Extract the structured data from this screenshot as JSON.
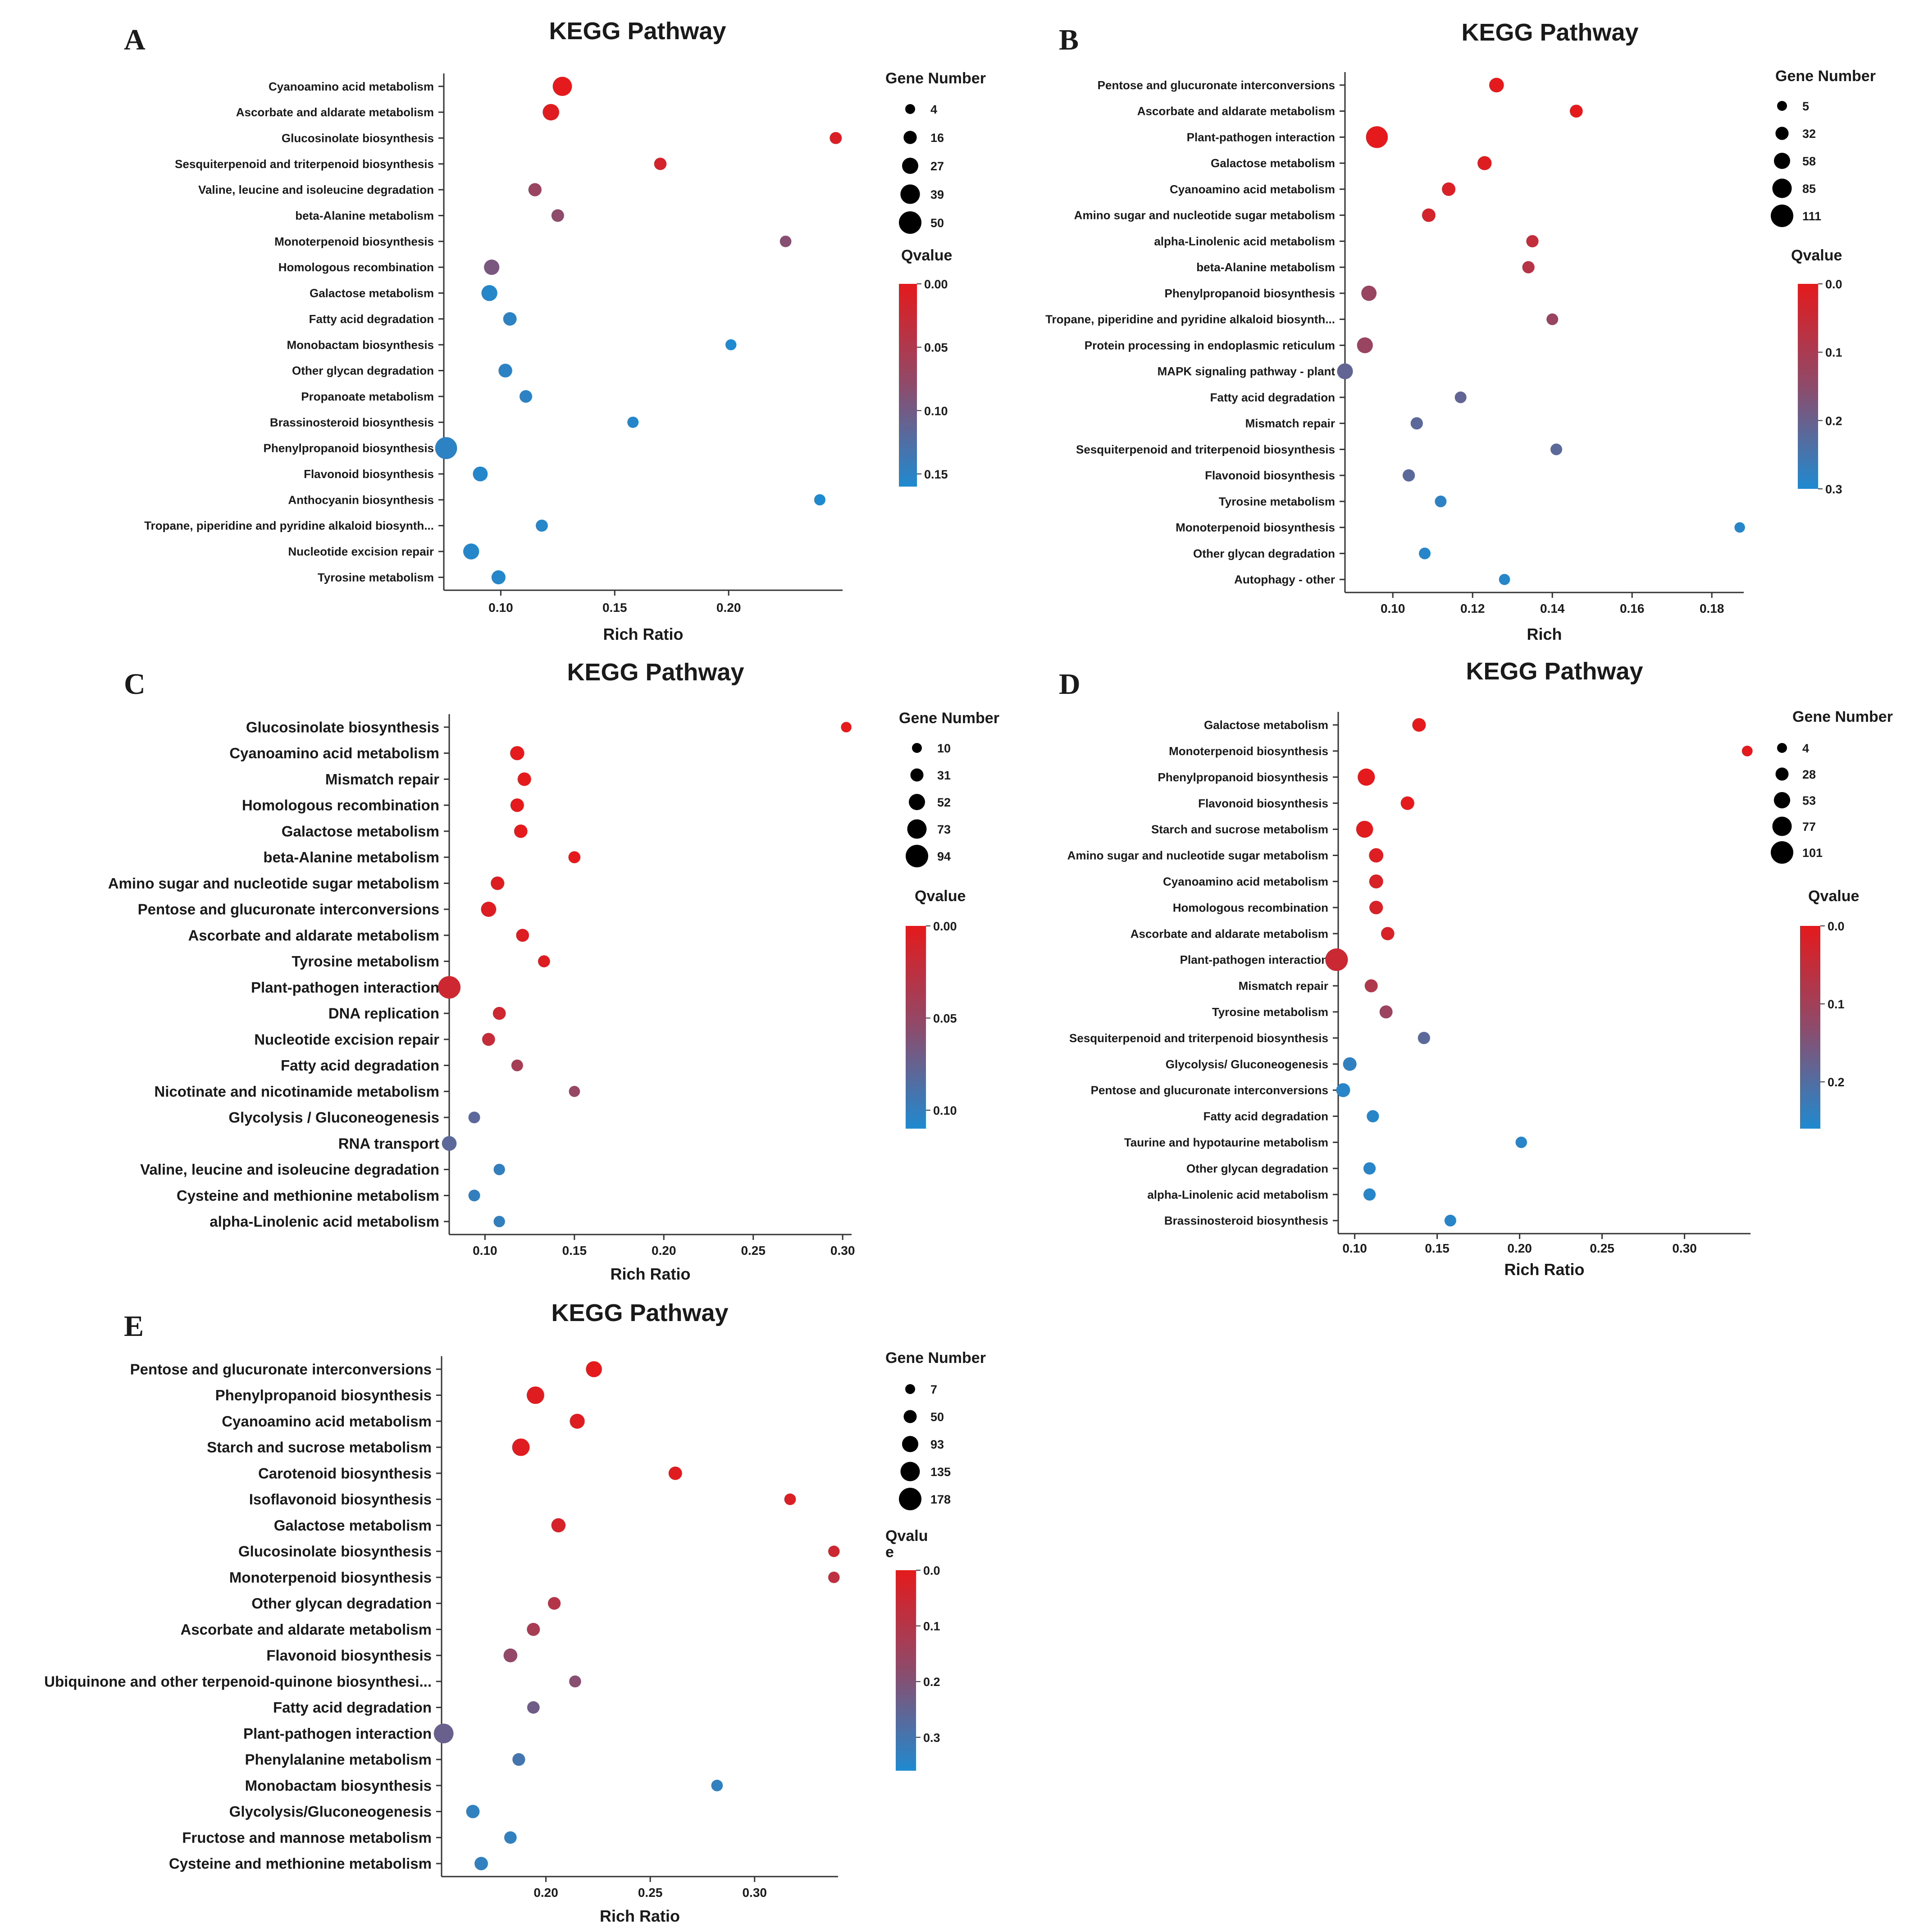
{
  "colors": {
    "qvalue_high": "#e41a1c",
    "qvalue_mid": "#8e4b6b",
    "qvalue_low": "#1f8ad0",
    "axis": "#333333",
    "text": "#1a1a1a"
  },
  "chart_data": [
    {
      "panel": "A",
      "type": "scatter",
      "title": "KEGG Pathway",
      "xlabel": "Rich Ratio",
      "xlim": [
        0.075,
        0.25
      ],
      "xticks": [
        "0.10",
        "0.15",
        "0.20"
      ],
      "size_legend": {
        "title": "Gene Number",
        "values": [
          4,
          16,
          27,
          39,
          50
        ]
      },
      "color_legend": {
        "title": "Qvalue",
        "range": [
          0,
          0.16
        ],
        "ticks": [
          "0.00",
          "0.05",
          "0.10",
          "0.15"
        ]
      },
      "categories": [
        "Cyanoamino acid metabolism",
        "Ascorbate and aldarate metabolism",
        "Glucosinolate biosynthesis",
        "Sesquiterpenoid and triterpenoid biosynthesis",
        "Valine, leucine and isoleucine degradation",
        "beta-Alanine metabolism",
        "Monoterpenoid biosynthesis",
        "Homologous recombination",
        "Galactose metabolism",
        "Fatty acid degradation",
        "Monobactam biosynthesis",
        "Other glycan degradation",
        "Propanoate metabolism",
        "Brassinosteroid biosynthesis",
        "Phenylpropanoid biosynthesis",
        "Flavonoid biosynthesis",
        "Anthocyanin biosynthesis",
        "Tropane, piperidine and pyridine alkaloid biosynth...",
        "Nucleotide excision repair",
        "Tyrosine metabolism"
      ],
      "x": [
        0.127,
        0.122,
        0.247,
        0.17,
        0.115,
        0.125,
        0.225,
        0.096,
        0.095,
        0.104,
        0.201,
        0.102,
        0.111,
        0.158,
        0.076,
        0.091,
        0.24,
        0.118,
        0.087,
        0.099
      ],
      "gene_number": [
        38,
        28,
        12,
        13,
        16,
        14,
        10,
        24,
        26,
        17,
        8,
        18,
        14,
        9,
        48,
        22,
        9,
        12,
        26,
        19
      ],
      "qvalue": [
        0.0,
        0.005,
        0.01,
        0.015,
        0.07,
        0.08,
        0.085,
        0.095,
        0.155,
        0.15,
        0.16,
        0.15,
        0.15,
        0.155,
        0.15,
        0.155,
        0.16,
        0.155,
        0.155,
        0.155
      ]
    },
    {
      "panel": "B",
      "type": "scatter",
      "title": "KEGG Pathway",
      "xlabel": "Rich",
      "xlim": [
        0.088,
        0.188
      ],
      "xticks": [
        "0.10",
        "0.12",
        "0.14",
        "0.16",
        "0.18"
      ],
      "size_legend": {
        "title": "Gene Number",
        "values": [
          5,
          32,
          58,
          85,
          111
        ]
      },
      "color_legend": {
        "title": "Qvalue",
        "range": [
          0,
          0.3
        ],
        "ticks": [
          "0.0",
          "0.1",
          "0.2",
          "0.3"
        ]
      },
      "categories": [
        "Pentose and glucuronate interconversions",
        "Ascorbate and aldarate metabolism",
        "Plant-pathogen interaction",
        "Galactose metabolism",
        "Cyanoamino acid metabolism",
        "Amino sugar and nucleotide sugar metabolism",
        "alpha-Linolenic acid metabolism",
        "beta-Alanine metabolism",
        "Phenylpropanoid biosynthesis",
        "Tropane, piperidine and pyridine alkaloid biosynth...",
        "Protein processing in endoplasmic reticulum",
        "MAPK signaling pathway - plant",
        "Fatty acid degradation",
        "Mismatch repair",
        "Sesquiterpenoid and triterpenoid biosynthesis",
        "Flavonoid biosynthesis",
        "Tyrosine metabolism",
        "Monoterpenoid biosynthesis",
        "Other glycan degradation",
        "Autophagy - other"
      ],
      "x": [
        0.126,
        0.146,
        0.096,
        0.123,
        0.114,
        0.109,
        0.135,
        0.134,
        0.094,
        0.14,
        0.093,
        0.088,
        0.117,
        0.106,
        0.141,
        0.104,
        0.112,
        0.187,
        0.108,
        0.128
      ],
      "gene_number": [
        45,
        30,
        105,
        40,
        35,
        35,
        25,
        25,
        50,
        20,
        55,
        55,
        20,
        25,
        20,
        25,
        20,
        10,
        20,
        15
      ],
      "qvalue": [
        0.0,
        0.0,
        0.0,
        0.01,
        0.02,
        0.03,
        0.06,
        0.08,
        0.13,
        0.13,
        0.13,
        0.21,
        0.21,
        0.22,
        0.22,
        0.22,
        0.28,
        0.29,
        0.29,
        0.29
      ]
    },
    {
      "panel": "C",
      "type": "scatter",
      "title": "KEGG Pathway",
      "xlabel": "Rich Ratio",
      "xlim": [
        0.08,
        0.305
      ],
      "xticks": [
        "0.10",
        "0.15",
        "0.20",
        "0.25",
        "0.30"
      ],
      "size_legend": {
        "title": "Gene Number",
        "values": [
          10,
          31,
          52,
          73,
          94
        ]
      },
      "color_legend": {
        "title": "Qvalue",
        "range": [
          0,
          0.11
        ],
        "ticks": [
          "0.00",
          "0.05",
          "0.10"
        ]
      },
      "categories": [
        "Glucosinolate biosynthesis",
        "Cyanoamino acid metabolism",
        "Mismatch repair",
        "Homologous recombination",
        "Galactose metabolism",
        "beta-Alanine metabolism",
        "Amino sugar and nucleotide sugar metabolism",
        "Pentose and glucuronate interconversions",
        "Ascorbate and aldarate metabolism",
        "Tyrosine metabolism",
        "Plant-pathogen interaction",
        "DNA replication",
        "Nucleotide excision repair",
        "Fatty acid degradation",
        "Nicotinate and nicotinamide metabolism",
        "Glycolysis / Gluconeogenesis",
        "RNA transport",
        "Valine, leucine and isoleucine degradation",
        "Cysteine and methionine metabolism",
        "alpha-Linolenic acid metabolism"
      ],
      "x": [
        0.302,
        0.118,
        0.122,
        0.118,
        0.12,
        0.15,
        0.107,
        0.102,
        0.121,
        0.133,
        0.08,
        0.108,
        0.102,
        0.118,
        0.15,
        0.094,
        0.08,
        0.108,
        0.094,
        0.108
      ],
      "gene_number": [
        14,
        38,
        34,
        34,
        33,
        24,
        34,
        45,
        30,
        24,
        94,
        30,
        30,
        22,
        18,
        22,
        42,
        20,
        22,
        20
      ],
      "qvalue": [
        0.0,
        0.0,
        0.0,
        0.0,
        0.0,
        0.0,
        0.005,
        0.005,
        0.005,
        0.005,
        0.015,
        0.015,
        0.02,
        0.04,
        0.05,
        0.08,
        0.08,
        0.1,
        0.1,
        0.1
      ]
    },
    {
      "panel": "D",
      "type": "scatter",
      "title": "KEGG Pathway",
      "xlabel": "Rich Ratio",
      "xlim": [
        0.09,
        0.34
      ],
      "xticks": [
        "0.10",
        "0.15",
        "0.20",
        "0.25",
        "0.30"
      ],
      "size_legend": {
        "title": "Gene Number",
        "values": [
          4,
          28,
          53,
          77,
          101
        ]
      },
      "color_legend": {
        "title": "Qvalue",
        "range": [
          0,
          0.26
        ],
        "ticks": [
          "0.0",
          "0.1",
          "0.2"
        ]
      },
      "categories": [
        "Galactose metabolism",
        "Monoterpenoid biosynthesis",
        "Phenylpropanoid biosynthesis",
        "Flavonoid biosynthesis",
        "Starch and sucrose metabolism",
        "Amino sugar and nucleotide sugar metabolism",
        "Cyanoamino acid metabolism",
        "Homologous recombination",
        "Ascorbate and aldarate metabolism",
        "Plant-pathogen interaction",
        "Mismatch repair",
        "Tyrosine metabolism",
        "Sesquiterpenoid and triterpenoid biosynthesis",
        "Glycolysis/ Gluconeogenesis",
        "Pentose and glucuronate interconversions",
        "Fatty acid degradation",
        "Taurine and hypotaurine metabolism",
        "Other glycan degradation",
        "alpha-Linolenic acid metabolism",
        "Brassinosteroid biosynthesis"
      ],
      "x": [
        0.139,
        0.338,
        0.107,
        0.132,
        0.106,
        0.113,
        0.113,
        0.113,
        0.12,
        0.089,
        0.11,
        0.119,
        0.142,
        0.097,
        0.093,
        0.111,
        0.201,
        0.109,
        0.109,
        0.158
      ],
      "gene_number": [
        32,
        10,
        60,
        32,
        58,
        38,
        35,
        32,
        30,
        101,
        28,
        28,
        22,
        32,
        35,
        22,
        16,
        22,
        22,
        18
      ],
      "qvalue": [
        0.0,
        0.0,
        0.0,
        0.0,
        0.005,
        0.01,
        0.02,
        0.02,
        0.02,
        0.04,
        0.08,
        0.11,
        0.19,
        0.24,
        0.25,
        0.25,
        0.25,
        0.25,
        0.25,
        0.25
      ]
    },
    {
      "panel": "E",
      "type": "scatter",
      "title": "KEGG Pathway",
      "xlabel": "Rich Ratio",
      "xlim": [
        0.15,
        0.34
      ],
      "xticks": [
        "0.20",
        "0.25",
        "0.30"
      ],
      "size_legend": {
        "title": "Gene Number",
        "values": [
          7,
          50,
          93,
          135,
          178
        ]
      },
      "color_legend": {
        "title": "Qvalu\ne",
        "range": [
          0,
          0.36
        ],
        "ticks": [
          "0.0",
          "0.1",
          "0.2",
          "0.3"
        ]
      },
      "categories": [
        "Pentose and glucuronate interconversions",
        "Phenylpropanoid biosynthesis",
        "Cyanoamino acid metabolism",
        "Starch and sucrose metabolism",
        "Carotenoid biosynthesis",
        "Isoflavonoid biosynthesis",
        "Galactose metabolism",
        "Glucosinolate biosynthesis",
        "Monoterpenoid biosynthesis",
        "Other glycan degradation",
        "Ascorbate and aldarate metabolism",
        "Flavonoid biosynthesis",
        "Ubiquinone and other terpenoid-quinone biosynthesi...",
        "Fatty acid degradation",
        "Plant-pathogen interaction",
        "Phenylalanine metabolism",
        "Monobactam biosynthesis",
        "Glycolysis/Gluconeogenesis",
        "Fructose and mannose metabolism",
        "Cysteine and methionine metabolism"
      ],
      "x": [
        0.223,
        0.195,
        0.215,
        0.188,
        0.262,
        0.317,
        0.206,
        0.338,
        0.338,
        0.204,
        0.194,
        0.183,
        0.214,
        0.194,
        0.151,
        0.187,
        0.282,
        0.165,
        0.183,
        0.169
      ],
      "gene_number": [
        90,
        110,
        75,
        110,
        55,
        30,
        65,
        28,
        28,
        45,
        50,
        60,
        35,
        42,
        140,
        45,
        30,
        55,
        42,
        55
      ],
      "qvalue": [
        0.0,
        0.01,
        0.01,
        0.01,
        0.01,
        0.02,
        0.03,
        0.05,
        0.08,
        0.1,
        0.13,
        0.17,
        0.19,
        0.23,
        0.24,
        0.3,
        0.33,
        0.33,
        0.33,
        0.33
      ]
    }
  ]
}
